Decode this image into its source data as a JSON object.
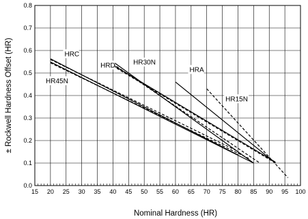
{
  "chart_data": {
    "type": "line",
    "xlabel": "Nominal Hardness (HR)",
    "ylabel": "± Rockwell Hardness Offset (HR)",
    "xlim": [
      15,
      100
    ],
    "ylim": [
      0.0,
      0.8
    ],
    "x_ticks": [
      15,
      20,
      25,
      30,
      35,
      40,
      45,
      50,
      55,
      60,
      65,
      70,
      75,
      80,
      85,
      90,
      95,
      100
    ],
    "y_ticks": [
      0.0,
      0.1,
      0.2,
      0.3,
      0.4,
      0.5,
      0.6,
      0.7,
      0.8
    ],
    "grid": true,
    "x_minor_step": 1,
    "series": [
      {
        "name": "HRC",
        "style": "solid",
        "x": [
          20,
          80
        ],
        "y": [
          0.563,
          0.136
        ]
      },
      {
        "name": "HR45N",
        "style": "dashed",
        "x": [
          20,
          80
        ],
        "y": [
          0.56,
          0.152
        ]
      },
      {
        "name": "HRD",
        "style": "solid",
        "x": [
          40,
          85
        ],
        "y": [
          0.55,
          0.1
        ]
      },
      {
        "name": "HR30N",
        "style": "dashed",
        "x": [
          40,
          87
        ],
        "y": [
          0.54,
          0.1
        ]
      },
      {
        "name": "HRA",
        "style": "solid",
        "x": [
          60,
          92
        ],
        "y": [
          0.46,
          0.1
        ]
      },
      {
        "name": "HR15N",
        "style": "dashed",
        "x": [
          70,
          96
        ],
        "y": [
          0.43,
          0.035
        ]
      },
      {
        "name": "",
        "style": "solid",
        "x": [
          20,
          85
        ],
        "y": [
          0.549,
          0.1
        ]
      },
      {
        "name": "",
        "style": "dashed",
        "x": [
          20,
          84
        ],
        "y": [
          0.545,
          0.117
        ]
      },
      {
        "name": "",
        "style": "solid",
        "x": [
          40,
          92
        ],
        "y": [
          0.535,
          0.104
        ]
      },
      {
        "name": "",
        "style": "dashed",
        "x": [
          40,
          92
        ],
        "y": [
          0.531,
          0.1
        ]
      }
    ],
    "labels": [
      {
        "text": "HRC",
        "x": 24.5,
        "y": 0.575
      },
      {
        "text": "HR45N",
        "x": 18.5,
        "y": 0.455
      },
      {
        "text": "HRD",
        "x": 36.0,
        "y": 0.525
      },
      {
        "text": "HR30N",
        "x": 46.5,
        "y": 0.538
      },
      {
        "text": "HRA",
        "x": 64.5,
        "y": 0.505
      },
      {
        "text": "HR15N",
        "x": 76.0,
        "y": 0.375
      }
    ]
  }
}
